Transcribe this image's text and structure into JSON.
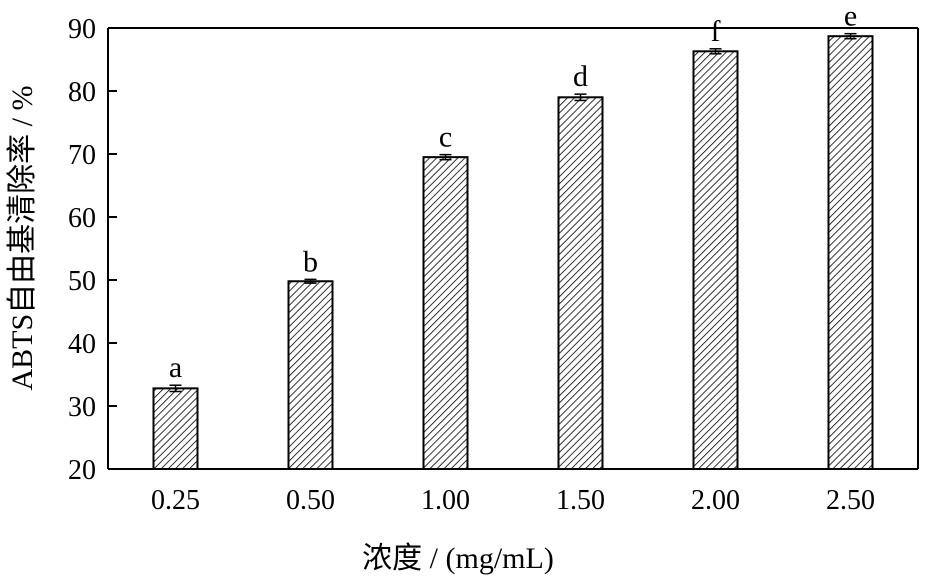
{
  "chart_data": {
    "type": "bar",
    "categories": [
      "0.25",
      "0.50",
      "1.00",
      "1.50",
      "2.00",
      "2.50"
    ],
    "values": [
      32.8,
      49.8,
      69.5,
      79.0,
      86.3,
      88.7
    ],
    "errors": [
      0.5,
      0.3,
      0.4,
      0.5,
      0.4,
      0.4
    ],
    "significance_labels": [
      "a",
      "b",
      "c",
      "d",
      "f",
      "e"
    ],
    "xlabel": "浓度 / (mg/mL)",
    "ylabel": "ABTS自由基清除率 / %",
    "ylim": [
      20,
      90
    ],
    "yticks": [
      "20",
      "30",
      "40",
      "50",
      "60",
      "70",
      "80",
      "90"
    ],
    "grid": false,
    "bar_fill": "hatched",
    "colors": {
      "bar_stroke": "#000000",
      "hatch": "#000000",
      "background": "#ffffff"
    }
  }
}
